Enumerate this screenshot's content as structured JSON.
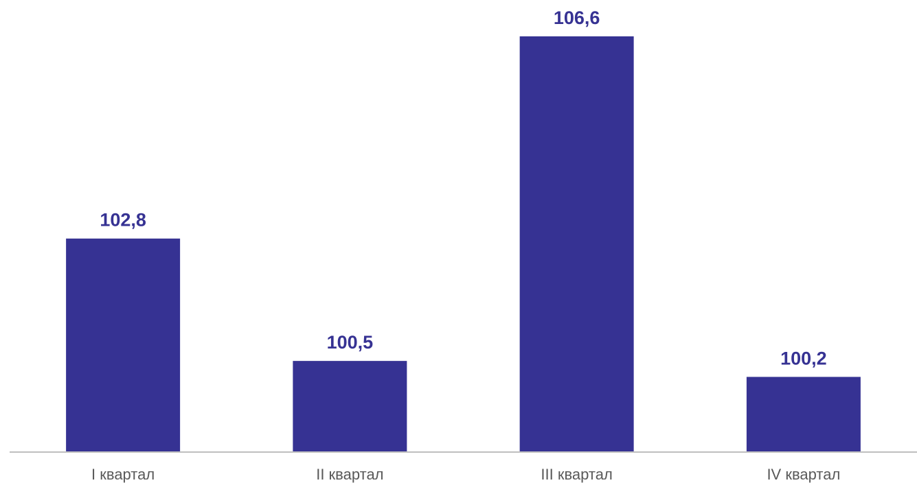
{
  "chart_data": {
    "type": "bar",
    "categories": [
      "I квартал",
      "II квартал",
      "III квартал",
      "IV квартал"
    ],
    "values": [
      102.8,
      100.5,
      106.6,
      100.2
    ],
    "value_labels": [
      "102,8",
      "100,5",
      "106,6",
      "100,2"
    ],
    "title": "",
    "xlabel": "",
    "ylabel": "",
    "ylim": [
      98.8,
      106.6
    ],
    "grid": false,
    "legend": "none"
  },
  "colors": {
    "bar": "#363293",
    "value_label": "#363293",
    "axis": "#bfbfbf",
    "tick_label": "#595959"
  }
}
